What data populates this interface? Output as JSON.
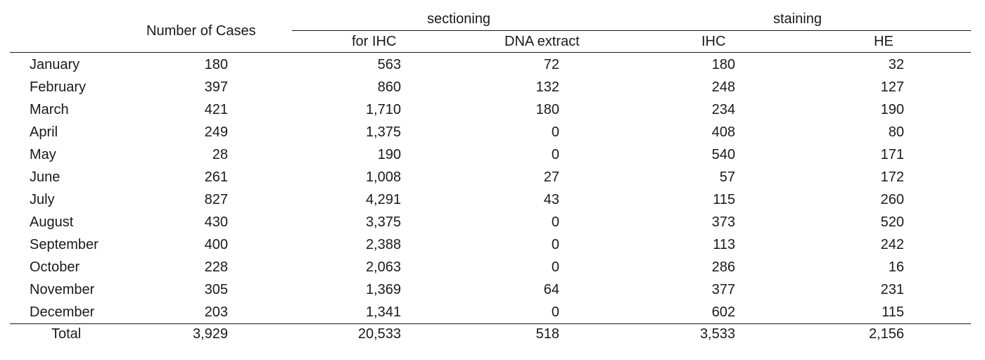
{
  "table": {
    "headers": {
      "number_of_cases": "Number of Cases",
      "group_sectioning": "sectioning",
      "group_staining": "staining",
      "for_ihc": "for IHC",
      "dna_extract": "DNA extract",
      "ihc": "IHC",
      "he": "HE"
    },
    "rows": [
      {
        "month": "January",
        "cases": "180",
        "for_ihc": "563",
        "dna_extract": "72",
        "ihc": "180",
        "he": "32"
      },
      {
        "month": "February",
        "cases": "397",
        "for_ihc": "860",
        "dna_extract": "132",
        "ihc": "248",
        "he": "127"
      },
      {
        "month": "March",
        "cases": "421",
        "for_ihc": "1,710",
        "dna_extract": "180",
        "ihc": "234",
        "he": "190"
      },
      {
        "month": "April",
        "cases": "249",
        "for_ihc": "1,375",
        "dna_extract": "0",
        "ihc": "408",
        "he": "80"
      },
      {
        "month": "May",
        "cases": "28",
        "for_ihc": "190",
        "dna_extract": "0",
        "ihc": "540",
        "he": "171"
      },
      {
        "month": "June",
        "cases": "261",
        "for_ihc": "1,008",
        "dna_extract": "27",
        "ihc": "57",
        "he": "172"
      },
      {
        "month": "July",
        "cases": "827",
        "for_ihc": "4,291",
        "dna_extract": "43",
        "ihc": "115",
        "he": "260"
      },
      {
        "month": "August",
        "cases": "430",
        "for_ihc": "3,375",
        "dna_extract": "0",
        "ihc": "373",
        "he": "520"
      },
      {
        "month": "September",
        "cases": "400",
        "for_ihc": "2,388",
        "dna_extract": "0",
        "ihc": "113",
        "he": "242"
      },
      {
        "month": "October",
        "cases": "228",
        "for_ihc": "2,063",
        "dna_extract": "0",
        "ihc": "286",
        "he": "16"
      },
      {
        "month": "November",
        "cases": "305",
        "for_ihc": "1,369",
        "dna_extract": "64",
        "ihc": "377",
        "he": "231"
      },
      {
        "month": "December",
        "cases": "203",
        "for_ihc": "1,341",
        "dna_extract": "0",
        "ihc": "602",
        "he": "115"
      }
    ],
    "total": {
      "label": "Total",
      "cases": "3,929",
      "for_ihc": "20,533",
      "dna_extract": "518",
      "ihc": "3,533",
      "he": "2,156"
    }
  }
}
